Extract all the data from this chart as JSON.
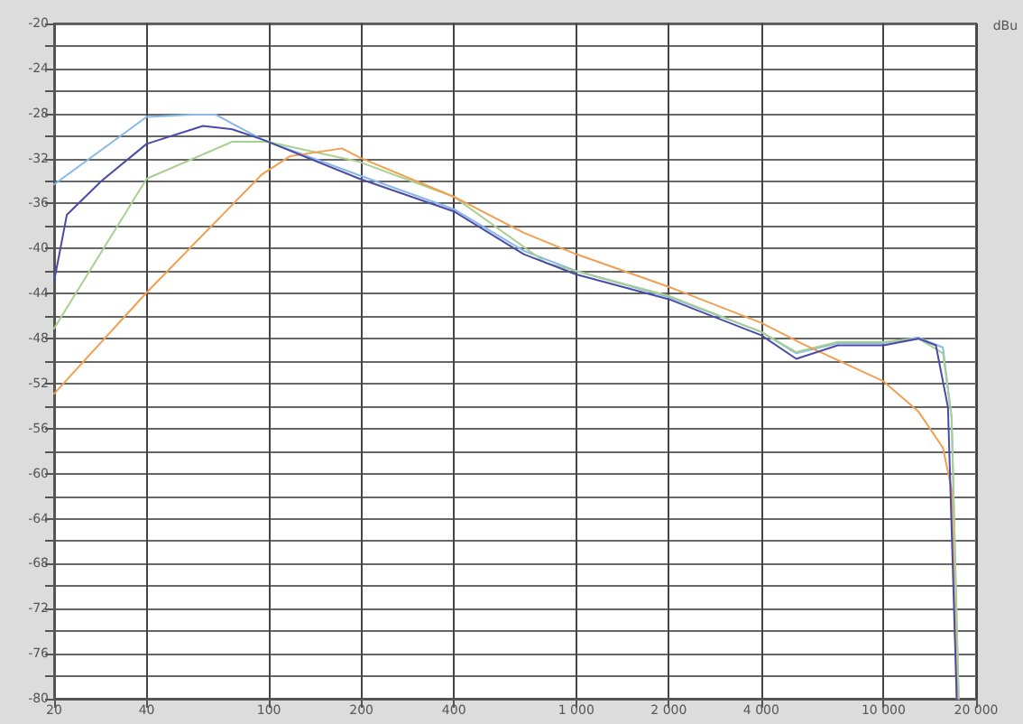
{
  "chart_data": {
    "type": "line",
    "ylabel": "dBu",
    "log": "x",
    "grid": true,
    "marker": "none",
    "line_style": "solid",
    "xlim": [
      20,
      20000
    ],
    "ylim": [
      -80,
      -20
    ],
    "xticks": [
      20,
      40,
      100,
      200,
      400,
      {
        "value": 1000,
        "label": "1 000"
      },
      {
        "value": 2000,
        "label": "2 000"
      },
      {
        "value": 4000,
        "label": "4 000"
      },
      {
        "value": 10000,
        "label": "10 000"
      },
      {
        "value": 20000,
        "label": "20 000"
      }
    ],
    "yticks": [
      -20,
      {
        "value": -22,
        "label": null
      },
      -24,
      {
        "value": -26,
        "label": null
      },
      -28,
      {
        "value": -30,
        "label": null
      },
      -32,
      {
        "value": -34,
        "label": null
      },
      -36,
      {
        "value": -38,
        "label": null
      },
      -40,
      {
        "value": -42,
        "label": null
      },
      -44,
      {
        "value": -46,
        "label": null
      },
      -48,
      {
        "value": -50,
        "label": null
      },
      -52,
      {
        "value": -54,
        "label": null
      },
      -56,
      {
        "value": -58,
        "label": null
      },
      -60,
      {
        "value": -62,
        "label": null
      },
      -64,
      {
        "value": -66,
        "label": null
      },
      -68,
      {
        "value": -70,
        "label": null
      },
      -72,
      {
        "value": -74,
        "label": null
      },
      -76,
      {
        "value": -78,
        "label": null
      },
      -80
    ],
    "series": [
      {
        "color": "#88b8e8",
        "x": [
          20,
          40,
          56,
          67,
          95,
          197,
          400,
          675,
          1000,
          2000,
          4000,
          5200,
          7100,
          10000,
          13000,
          15600,
          16650,
          17550
        ],
        "values": [
          -34.3,
          -28.3,
          -28.1,
          -28.1,
          -30.3,
          -33.5,
          -36.5,
          -40.2,
          -42,
          -44.3,
          -47.4,
          -49.3,
          -48.4,
          -48.4,
          -47.9,
          -48.8,
          -55,
          -80
        ]
      },
      {
        "color": "#a8d090",
        "x": [
          20,
          40,
          76,
          99,
          197,
          400,
          800,
          1000,
          2000,
          4000,
          5200,
          7100,
          10000,
          13000,
          15600,
          16650,
          17550
        ],
        "values": [
          -47.1,
          -33.8,
          -30.5,
          -30.5,
          -32.3,
          -35.4,
          -41.3,
          -42,
          -44.2,
          -47.4,
          -49.2,
          -48.3,
          -48.3,
          -48,
          -49.3,
          -55,
          -80
        ]
      },
      {
        "color": "#f0a050",
        "x": [
          20,
          40,
          95,
          117,
          173,
          197,
          400,
          675,
          1000,
          2000,
          4000,
          5480,
          10000,
          13000,
          15600,
          16650,
          17300
        ],
        "values": [
          -52.9,
          -43.9,
          -33.4,
          -31.8,
          -31.1,
          -31.9,
          -35.4,
          -38.6,
          -40.5,
          -43.4,
          -46.6,
          -48.5,
          -51.8,
          -54.5,
          -57.7,
          -61.4,
          -80
        ]
      },
      {
        "color": "#4a4aa8",
        "x": [
          20,
          22,
          28.5,
          40,
          61,
          76,
          95,
          197,
          400,
          675,
          1000,
          2000,
          4000,
          5200,
          7100,
          10000,
          13000,
          14800,
          16200,
          17300
        ],
        "values": [
          -42.9,
          -37,
          -34,
          -30.7,
          -29.1,
          -29.4,
          -30.3,
          -33.8,
          -36.7,
          -40.5,
          -42.3,
          -44.5,
          -47.7,
          -49.8,
          -48.6,
          -48.6,
          -48,
          -48.6,
          -54.1,
          -80
        ]
      }
    ]
  }
}
